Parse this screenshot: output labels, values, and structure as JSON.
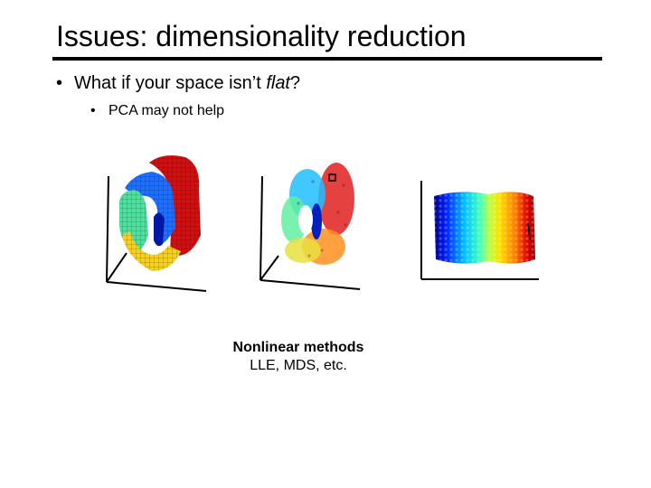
{
  "slide": {
    "title": "Issues:  dimensionality reduction",
    "bullet1": {
      "marker": "•",
      "text_before": "What if your space isn’t ",
      "text_italic": "flat",
      "text_after": "?"
    },
    "bullet2": {
      "marker": "•",
      "text": "PCA may not help"
    },
    "caption": {
      "title": "Nonlinear methods",
      "subtitle": "LLE, MDS, etc."
    }
  },
  "colors": {
    "background": "#ffffff",
    "text": "#000000",
    "jet": [
      "#00008f",
      "#0020ff",
      "#00bfff",
      "#3fffbf",
      "#bfff3f",
      "#ffdf00",
      "#ff7f00",
      "#e00000",
      "#8f0000"
    ]
  },
  "figures": [
    {
      "name": "swiss-roll-surface"
    },
    {
      "name": "swiss-roll-scatter"
    },
    {
      "name": "unrolled-embedding"
    }
  ]
}
